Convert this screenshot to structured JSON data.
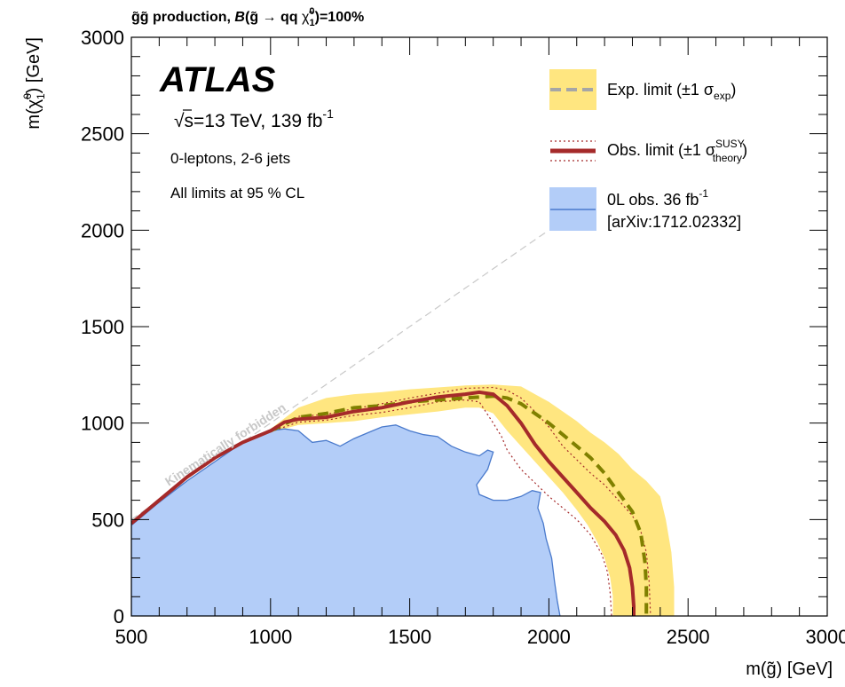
{
  "chart_data": {
    "type": "area",
    "title": "g̃g̃ production, B(g̃ → qq χ̃₁⁰)=100%",
    "title_parts": {
      "pair": "g̃g̃",
      "production": " production, ",
      "b": "B",
      "open": "(g̃ ",
      "arrow": "→",
      "qq": " qq ",
      "chi": "χ̃",
      "chi_sup": "0",
      "chi_sub": "1",
      "close": ")=100%"
    },
    "xlabel": "m(g̃) [GeV]",
    "ylabel": "m(χ̃₁⁰) [GeV]",
    "ylabel_parts": {
      "pre": "m(",
      "chi": "χ̃",
      "sup": "0",
      "sub": "1",
      "post": ") [GeV]"
    },
    "xlim": [
      500,
      3000
    ],
    "ylim": [
      0,
      3000
    ],
    "x_ticks": [
      500,
      1000,
      1500,
      2000,
      2500,
      3000
    ],
    "y_ticks": [
      0,
      500,
      1000,
      1500,
      2000,
      2500,
      3000
    ],
    "grid": false,
    "legend_position": "top-right",
    "colors": {
      "observed": "#a52a2a",
      "expected_band": "#ffe680",
      "expected_line": "#808000",
      "previous_fill": "#b3cdf8",
      "previous_line": "#4a7acc",
      "kinematic_line": "#c8c8c8"
    },
    "annotations": {
      "experiment": "ATLAS",
      "energy": "√s=13 TeV, 139 fb",
      "energy_sup": "-1",
      "selection": "0-leptons, 2-6 jets",
      "cl": "All limits at 95 % CL",
      "kinematic": "Kinematically forbidden"
    },
    "legend": [
      {
        "key": "expected",
        "text": "Exp. limit (±1 σ",
        "sub": "exp",
        "close": ")"
      },
      {
        "key": "observed",
        "text": "Obs. limit (±1 σ",
        "sup": "SUSY",
        "sub": "theory",
        "close": ")"
      },
      {
        "key": "previous",
        "line1": "0L obs. 36 fb",
        "line1_sup": "-1",
        "line2": "[arXiv:1712.02332]"
      }
    ],
    "series": [
      {
        "name": "Obs. limit",
        "points": [
          [
            500,
            480
          ],
          [
            600,
            600
          ],
          [
            700,
            720
          ],
          [
            800,
            820
          ],
          [
            900,
            900
          ],
          [
            1000,
            960
          ],
          [
            1050,
            1005
          ],
          [
            1100,
            1020
          ],
          [
            1200,
            1030
          ],
          [
            1300,
            1060
          ],
          [
            1400,
            1080
          ],
          [
            1500,
            1110
          ],
          [
            1600,
            1135
          ],
          [
            1700,
            1150
          ],
          [
            1750,
            1160
          ],
          [
            1800,
            1150
          ],
          [
            1850,
            1090
          ],
          [
            1900,
            1000
          ],
          [
            1950,
            890
          ],
          [
            2000,
            800
          ],
          [
            2050,
            720
          ],
          [
            2100,
            640
          ],
          [
            2150,
            560
          ],
          [
            2200,
            490
          ],
          [
            2240,
            420
          ],
          [
            2270,
            340
          ],
          [
            2290,
            250
          ],
          [
            2300,
            150
          ],
          [
            2305,
            50
          ],
          [
            2305,
            0
          ]
        ]
      },
      {
        "name": "Obs. -1σ theory",
        "points": [
          [
            1000,
            955
          ],
          [
            1100,
            1005
          ],
          [
            1200,
            1015
          ],
          [
            1300,
            1040
          ],
          [
            1400,
            1055
          ],
          [
            1500,
            1080
          ],
          [
            1600,
            1110
          ],
          [
            1700,
            1120
          ],
          [
            1750,
            1110
          ],
          [
            1800,
            1000
          ],
          [
            1830,
            930
          ],
          [
            1850,
            860
          ],
          [
            1900,
            760
          ],
          [
            1950,
            690
          ],
          [
            2000,
            620
          ],
          [
            2050,
            560
          ],
          [
            2100,
            500
          ],
          [
            2150,
            420
          ],
          [
            2190,
            320
          ],
          [
            2210,
            230
          ],
          [
            2220,
            120
          ],
          [
            2225,
            0
          ]
        ]
      },
      {
        "name": "Obs. +1σ theory",
        "points": [
          [
            1000,
            965
          ],
          [
            1100,
            1035
          ],
          [
            1200,
            1045
          ],
          [
            1300,
            1075
          ],
          [
            1400,
            1100
          ],
          [
            1500,
            1130
          ],
          [
            1600,
            1155
          ],
          [
            1700,
            1180
          ],
          [
            1800,
            1185
          ],
          [
            1850,
            1170
          ],
          [
            1900,
            1130
          ],
          [
            1950,
            1060
          ],
          [
            2000,
            980
          ],
          [
            2050,
            880
          ],
          [
            2100,
            810
          ],
          [
            2150,
            740
          ],
          [
            2200,
            680
          ],
          [
            2250,
            600
          ],
          [
            2300,
            520
          ],
          [
            2330,
            440
          ],
          [
            2350,
            330
          ],
          [
            2360,
            180
          ],
          [
            2365,
            0
          ]
        ]
      },
      {
        "name": "Exp. limit",
        "points": [
          [
            1000,
            960
          ],
          [
            1100,
            1030
          ],
          [
            1200,
            1050
          ],
          [
            1300,
            1080
          ],
          [
            1400,
            1090
          ],
          [
            1500,
            1110
          ],
          [
            1600,
            1120
          ],
          [
            1700,
            1130
          ],
          [
            1800,
            1140
          ],
          [
            1850,
            1130
          ],
          [
            1900,
            1100
          ],
          [
            1950,
            1050
          ],
          [
            2000,
            1000
          ],
          [
            2050,
            940
          ],
          [
            2100,
            880
          ],
          [
            2150,
            820
          ],
          [
            2200,
            740
          ],
          [
            2250,
            640
          ],
          [
            2300,
            540
          ],
          [
            2330,
            430
          ],
          [
            2345,
            280
          ],
          [
            2350,
            150
          ],
          [
            2350,
            0
          ]
        ]
      },
      {
        "name": "Exp. ±1σ band",
        "upper": [
          [
            1000,
            970
          ],
          [
            1100,
            1080
          ],
          [
            1200,
            1130
          ],
          [
            1300,
            1150
          ],
          [
            1400,
            1160
          ],
          [
            1500,
            1175
          ],
          [
            1600,
            1185
          ],
          [
            1700,
            1195
          ],
          [
            1800,
            1200
          ],
          [
            1900,
            1190
          ],
          [
            1950,
            1150
          ],
          [
            2000,
            1110
          ],
          [
            2050,
            1060
          ],
          [
            2100,
            1010
          ],
          [
            2150,
            950
          ],
          [
            2200,
            900
          ],
          [
            2250,
            840
          ],
          [
            2300,
            760
          ],
          [
            2350,
            700
          ],
          [
            2400,
            620
          ],
          [
            2420,
            500
          ],
          [
            2440,
            330
          ],
          [
            2450,
            150
          ],
          [
            2450,
            0
          ]
        ],
        "lower": [
          [
            2230,
            0
          ],
          [
            2230,
            100
          ],
          [
            2220,
            200
          ],
          [
            2200,
            300
          ],
          [
            2175,
            380
          ],
          [
            2140,
            470
          ],
          [
            2100,
            550
          ],
          [
            2050,
            640
          ],
          [
            2000,
            720
          ],
          [
            1950,
            800
          ],
          [
            1900,
            880
          ],
          [
            1850,
            960
          ],
          [
            1800,
            1050
          ],
          [
            1750,
            1080
          ],
          [
            1700,
            1080
          ],
          [
            1600,
            1060
          ],
          [
            1500,
            1045
          ],
          [
            1400,
            1030
          ],
          [
            1300,
            1010
          ],
          [
            1200,
            1000
          ],
          [
            1100,
            990
          ],
          [
            1000,
            950
          ]
        ]
      },
      {
        "name": "0L obs. 36 fb-1",
        "points": [
          [
            500,
            0
          ],
          [
            500,
            470
          ],
          [
            600,
            590
          ],
          [
            700,
            700
          ],
          [
            800,
            800
          ],
          [
            900,
            900
          ],
          [
            1000,
            960
          ],
          [
            1050,
            970
          ],
          [
            1100,
            960
          ],
          [
            1150,
            900
          ],
          [
            1200,
            910
          ],
          [
            1250,
            880
          ],
          [
            1300,
            920
          ],
          [
            1350,
            950
          ],
          [
            1400,
            980
          ],
          [
            1450,
            990
          ],
          [
            1500,
            960
          ],
          [
            1550,
            940
          ],
          [
            1600,
            930
          ],
          [
            1650,
            880
          ],
          [
            1700,
            850
          ],
          [
            1750,
            830
          ],
          [
            1780,
            860
          ],
          [
            1800,
            850
          ],
          [
            1780,
            760
          ],
          [
            1740,
            680
          ],
          [
            1750,
            630
          ],
          [
            1800,
            600
          ],
          [
            1850,
            600
          ],
          [
            1900,
            620
          ],
          [
            1940,
            650
          ],
          [
            1970,
            640
          ],
          [
            1960,
            560
          ],
          [
            1980,
            480
          ],
          [
            1990,
            400
          ],
          [
            2010,
            300
          ],
          [
            2020,
            180
          ],
          [
            2030,
            80
          ],
          [
            2040,
            0
          ]
        ]
      }
    ],
    "kinematic_limit": [
      [
        500,
        500
      ],
      [
        1540,
        1540
      ],
      [
        1995,
        1995
      ]
    ]
  }
}
